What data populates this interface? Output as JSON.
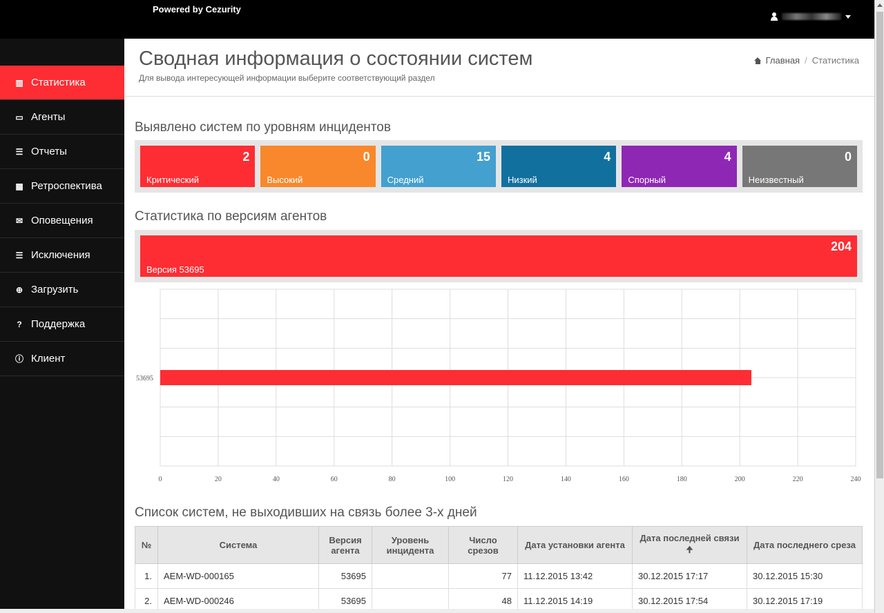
{
  "topbar": {
    "brand": "Powered by Cezurity"
  },
  "sidebar": {
    "items": [
      {
        "label": "Статистика",
        "icon": "bar-chart-icon",
        "active": true
      },
      {
        "label": "Агенты",
        "icon": "monitor-icon"
      },
      {
        "label": "Отчеты",
        "icon": "list-icon"
      },
      {
        "label": "Ретроспектива",
        "icon": "table-icon"
      },
      {
        "label": "Оповещения",
        "icon": "envelope-icon"
      },
      {
        "label": "Исключения",
        "icon": "list-icon"
      },
      {
        "label": "Загрузить",
        "icon": "download-icon"
      },
      {
        "label": "Поддержка",
        "icon": "question-icon"
      },
      {
        "label": "Клиент",
        "icon": "info-icon"
      }
    ]
  },
  "header": {
    "title": "Сводная информация о состоянии систем",
    "subtitle": "Для вывода интересующей информации выберите соответствующий раздел",
    "breadcrumb": {
      "home": "Главная",
      "current": "Статистика"
    }
  },
  "incidents": {
    "title": "Выявлено систем по уровням инцидентов",
    "tiles": [
      {
        "label": "Критический",
        "count": "2",
        "color": "#fd2d33"
      },
      {
        "label": "Высокий",
        "count": "0",
        "color": "#f8882b"
      },
      {
        "label": "Средний",
        "count": "15",
        "color": "#43a0cf"
      },
      {
        "label": "Низкий",
        "count": "4",
        "color": "#12709f"
      },
      {
        "label": "Спорный",
        "count": "4",
        "color": "#8f27b5"
      },
      {
        "label": "Неизвестный",
        "count": "0",
        "color": "#777777"
      }
    ]
  },
  "versions": {
    "title": "Статистика по версиям агентов",
    "bar": {
      "label": "Версия 53695",
      "count": "204"
    }
  },
  "chart_data": {
    "type": "bar",
    "orientation": "horizontal",
    "categories": [
      "53695"
    ],
    "values": [
      204
    ],
    "xlim": [
      0,
      240
    ],
    "xticks": [
      0,
      20,
      40,
      60,
      80,
      100,
      120,
      140,
      160,
      180,
      200,
      220,
      240
    ],
    "grid": true,
    "bar_color": "#fd2d33"
  },
  "table": {
    "title": "Список систем, не выходивших на связь более 3-х дней",
    "headers": [
      "№",
      "Система",
      "Версия агента",
      "Уровень инцидента",
      "Число срезов",
      "Дата установки агента",
      "Дата последней связи",
      "Дата последнего среза"
    ],
    "sort_icon": "arrow-up-icon",
    "rows": [
      [
        "1.",
        "AEM-WD-000165",
        "53695",
        "",
        "77",
        "11.12.2015 13:42",
        "30.12.2015 17:17",
        "30.12.2015 15:30"
      ],
      [
        "2.",
        "AEM-WD-000246",
        "53695",
        "",
        "48",
        "11.12.2015 14:19",
        "30.12.2015 17:54",
        "30.12.2015 17:19"
      ]
    ]
  }
}
